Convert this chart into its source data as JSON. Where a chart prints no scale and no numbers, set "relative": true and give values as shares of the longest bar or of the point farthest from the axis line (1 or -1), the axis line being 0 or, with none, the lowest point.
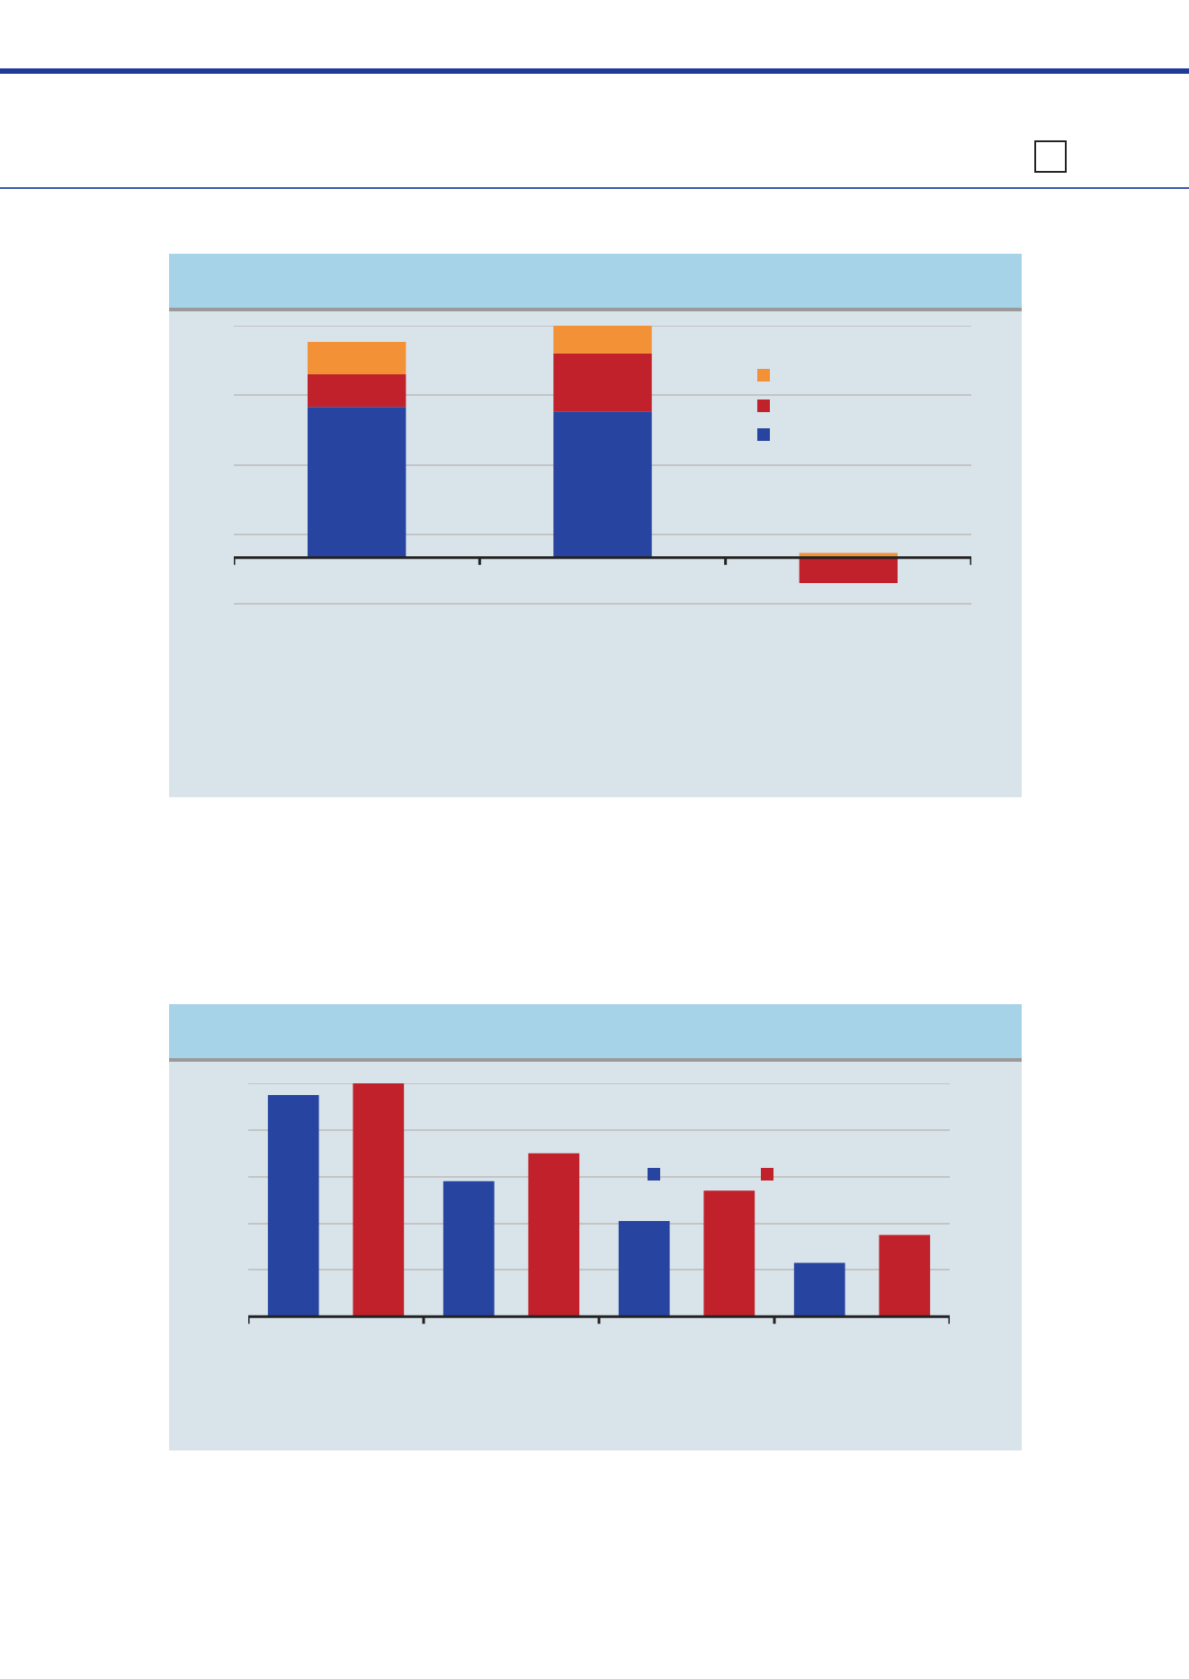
{
  "chart_data": [
    {
      "type": "bar",
      "relative": true,
      "stacked": true,
      "grid": "y",
      "categories": [
        null,
        null,
        null
      ],
      "series": [
        {
          "color": "#2744a0",
          "values": [
            0.65,
            0.63,
            0
          ]
        },
        {
          "color": "#c0212b",
          "values": [
            0.14,
            0.25,
            -0.11
          ]
        },
        {
          "color": "#f29135",
          "values": [
            0.14,
            0.12,
            0.02
          ]
        }
      ]
    },
    {
      "type": "bar",
      "relative": true,
      "grid": "y",
      "categories": [
        null,
        null,
        null,
        null
      ],
      "series": [
        {
          "color": "#2744a0",
          "values": [
            0.95,
            0.58,
            0.41,
            0.23
          ]
        },
        {
          "color": "#c0212b",
          "values": [
            1,
            0.7,
            0.54,
            0.35
          ]
        }
      ]
    }
  ]
}
